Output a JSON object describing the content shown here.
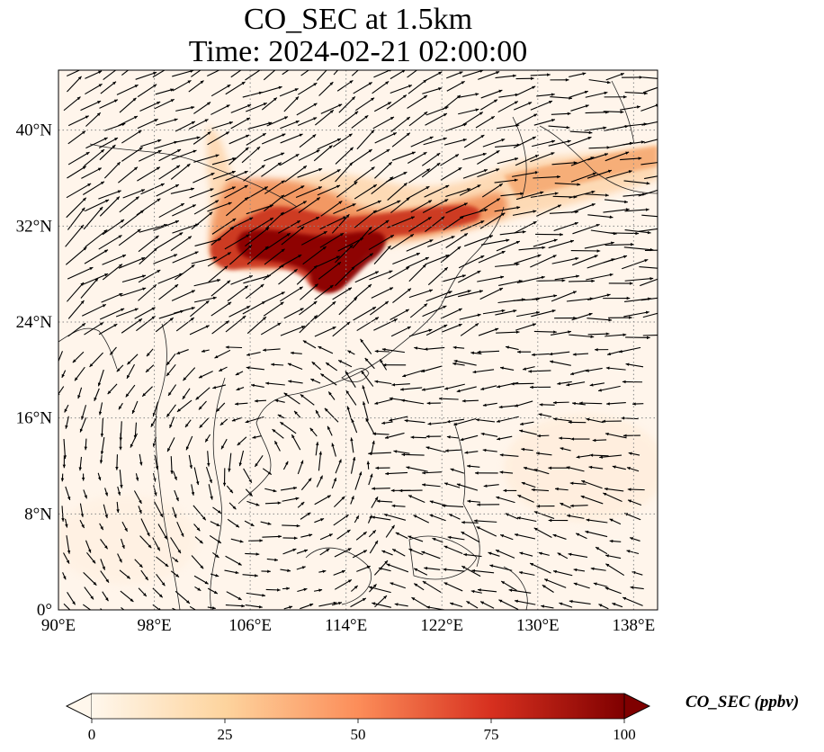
{
  "title": {
    "line1": "CO_SEC at 1.5km",
    "line2": "Time: 2024-02-21 02:00:00"
  },
  "map": {
    "projection": "PlateCarree",
    "lon_range": [
      90,
      140
    ],
    "lat_range": [
      0,
      45
    ],
    "x_ticks": [
      {
        "value": 90,
        "label": "90°E"
      },
      {
        "value": 98,
        "label": "98°E"
      },
      {
        "value": 106,
        "label": "106°E"
      },
      {
        "value": 114,
        "label": "114°E"
      },
      {
        "value": 122,
        "label": "122°E"
      },
      {
        "value": 130,
        "label": "130°E"
      },
      {
        "value": 138,
        "label": "138°E"
      }
    ],
    "y_ticks": [
      {
        "value": 0,
        "label": "0°"
      },
      {
        "value": 8,
        "label": "8°N"
      },
      {
        "value": 16,
        "label": "16°N"
      },
      {
        "value": 24,
        "label": "24°N"
      },
      {
        "value": 32,
        "label": "32°N"
      },
      {
        "value": 40,
        "label": "40°N"
      }
    ],
    "gridlines": "dotted",
    "background_color": "#fff5eb",
    "overlay": "wind vectors (black arrows)"
  },
  "colorbar": {
    "label": "CO_SEC (ppbv)",
    "colormap": "OrRd",
    "range": [
      0,
      100
    ],
    "extend": "both",
    "ticks": [
      {
        "value": 0,
        "label": "0"
      },
      {
        "value": 25,
        "label": "25"
      },
      {
        "value": 50,
        "label": "50"
      },
      {
        "value": 75,
        "label": "75"
      },
      {
        "value": 100,
        "label": "100"
      }
    ],
    "colors": [
      "#fff7ec",
      "#fdd49e",
      "#fc8d59",
      "#d7301f",
      "#7f0000"
    ]
  },
  "plume": {
    "description_color_high": "#8b0000",
    "description_color_mid": "#e0622a",
    "description_color_low": "#fcc48a"
  }
}
